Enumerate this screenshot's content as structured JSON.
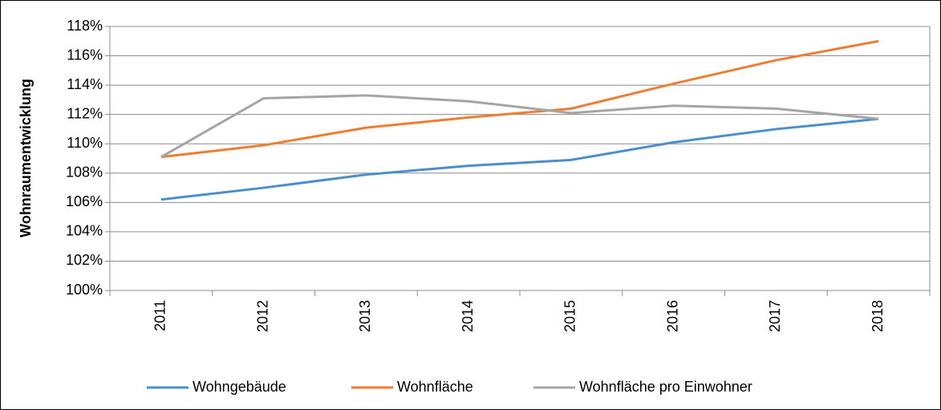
{
  "chart_data": {
    "type": "line",
    "y_label": "Wohnraumentwicklung",
    "categories": [
      "2011",
      "2012",
      "2013",
      "2014",
      "2015",
      "2016",
      "2017",
      "2018"
    ],
    "series": [
      {
        "name": "Wohngebäude",
        "color": "#4a8ecb",
        "values": [
          106.2,
          107.0,
          107.9,
          108.5,
          108.9,
          110.1,
          111.0,
          111.7
        ]
      },
      {
        "name": "Wohnfläche",
        "color": "#ef7d31",
        "values": [
          109.1,
          109.9,
          111.1,
          111.8,
          112.4,
          114.1,
          115.7,
          117.0
        ]
      },
      {
        "name": "Wohnfläche pro Einwohner",
        "color": "#a5a5a5",
        "values": [
          109.1,
          113.1,
          113.3,
          112.9,
          112.1,
          112.6,
          112.4,
          111.7
        ]
      }
    ],
    "ylim": [
      100,
      118
    ],
    "yticks": [
      {
        "value": 100,
        "label": "100%"
      },
      {
        "value": 102,
        "label": "102%"
      },
      {
        "value": 104,
        "label": "104%"
      },
      {
        "value": 106,
        "label": "106%"
      },
      {
        "value": 108,
        "label": "108%"
      },
      {
        "value": 110,
        "label": "110%"
      },
      {
        "value": 112,
        "label": "112%"
      },
      {
        "value": 114,
        "label": "114%"
      },
      {
        "value": 116,
        "label": "116%"
      },
      {
        "value": 118,
        "label": "118%"
      }
    ],
    "grid": true,
    "legend": "bottom"
  }
}
